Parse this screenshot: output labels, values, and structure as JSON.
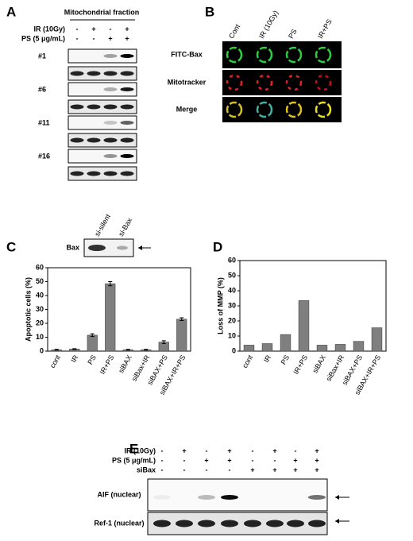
{
  "panels": {
    "A": {
      "label": "A",
      "title": "Mitochondrial fraction",
      "rows": [
        {
          "name": "IR (10Gy)",
          "signs": [
            "-",
            "+",
            "-",
            "+"
          ]
        },
        {
          "name": "PS (5 μg/mL)",
          "signs": [
            "-",
            "-",
            "+",
            "+"
          ]
        }
      ],
      "samples": [
        "#1",
        "#6",
        "#11",
        "#16"
      ]
    },
    "B": {
      "label": "B",
      "columns": [
        "Cont",
        "IR (10Gy)",
        "PS",
        "IR+PS"
      ],
      "rows": [
        "FITC-Bax",
        "Mitotracker",
        "Merge"
      ]
    },
    "C": {
      "label": "C",
      "blot_label": "Bax",
      "lanes": [
        "si-silent",
        "si-Bax"
      ]
    },
    "D": {
      "label": "D"
    },
    "E": {
      "label": "E",
      "rows": [
        {
          "name": "IR (10Gy)",
          "signs": [
            "-",
            "+",
            "-",
            "+",
            "-",
            "+",
            "-",
            "+"
          ]
        },
        {
          "name": "PS (5 μg/mL)",
          "signs": [
            "-",
            "-",
            "+",
            "+",
            "-",
            "-",
            "+",
            "+"
          ]
        },
        {
          "name": "siBax",
          "signs": [
            "-",
            "-",
            "-",
            "-",
            "+",
            "+",
            "+",
            "+"
          ]
        }
      ],
      "blots": [
        "AIF (nuclear)",
        "Ref-1 (nuclear)"
      ]
    }
  },
  "chart_data": [
    {
      "type": "bar",
      "ylabel": "Apoptotic cells (%)",
      "categories": [
        "cont",
        "IR",
        "PS",
        "IR+PS",
        "siBAX",
        "siBax+IR",
        "siBAX+PS",
        "siBAX+IR+PS"
      ],
      "values": [
        1,
        1.5,
        11.5,
        48.5,
        1,
        1,
        6.5,
        23
      ],
      "errors": [
        0.3,
        0.3,
        1,
        1.5,
        0.3,
        0.3,
        1,
        1
      ],
      "color": "#7f7f7f",
      "ylim": [
        0,
        60
      ],
      "yticks": [
        0,
        10,
        20,
        30,
        40,
        50,
        60
      ]
    },
    {
      "type": "bar",
      "ylabel": "Loss of MMP (%)",
      "categories": [
        "cont",
        "IR",
        "PS",
        "IR+PS",
        "siBAX",
        "siBax+IR",
        "siBAX+PS",
        "siBAX+IR+PS"
      ],
      "values": [
        4,
        5,
        11,
        33.5,
        4,
        4.5,
        6.5,
        15.5
      ],
      "color": "#7f7f7f",
      "ylim": [
        0,
        60
      ],
      "yticks": [
        0,
        10,
        20,
        30,
        40,
        50,
        60
      ]
    }
  ]
}
